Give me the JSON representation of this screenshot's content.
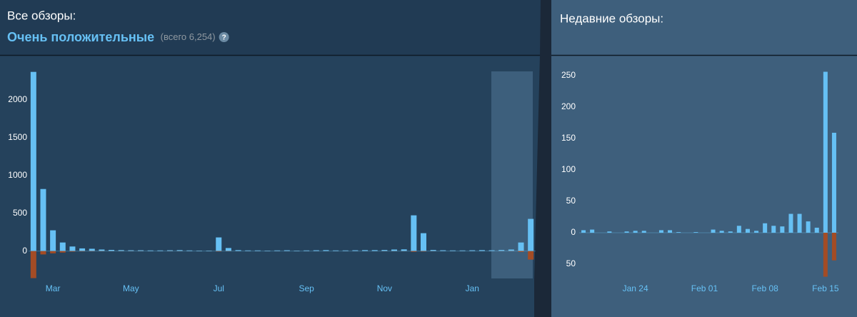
{
  "chart_data": [
    {
      "type": "bar",
      "title": "Все обзоры:",
      "summary": "Очень положительные",
      "total_label": "(всего 6,254)",
      "help_icon": "?",
      "categories": [
        null,
        null,
        "Mar",
        null,
        null,
        null,
        null,
        null,
        null,
        null,
        "May",
        null,
        null,
        null,
        null,
        null,
        null,
        null,
        null,
        "Jul",
        null,
        null,
        null,
        null,
        null,
        null,
        null,
        null,
        "Sep",
        null,
        null,
        null,
        null,
        null,
        null,
        null,
        "Nov",
        null,
        null,
        null,
        null,
        null,
        null,
        null,
        null,
        "Jan",
        null,
        null,
        null,
        null,
        null,
        null
      ],
      "series": [
        {
          "color": "#66c0f4",
          "values": [
            2368,
            820,
            274,
            113,
            60,
            35,
            30,
            20,
            15,
            12,
            10,
            10,
            8,
            8,
            10,
            12,
            8,
            6,
            6,
            180,
            40,
            12,
            8,
            8,
            6,
            8,
            10,
            6,
            8,
            10,
            12,
            8,
            8,
            10,
            12,
            12,
            14,
            20,
            22,
            472,
            236,
            14,
            10,
            8,
            8,
            10,
            12,
            10,
            14,
            20,
            113,
            425
          ]
        },
        {
          "color": "#a34c25",
          "values": [
            -358,
            -45,
            -30,
            -20,
            -8,
            -5,
            -4,
            -3,
            -2,
            -2,
            -2,
            -2,
            -1,
            -1,
            -2,
            -2,
            -1,
            -1,
            -1,
            -6,
            -3,
            -1,
            -1,
            -1,
            -1,
            -1,
            -1,
            -1,
            -1,
            -1,
            -1,
            -1,
            -1,
            -1,
            -1,
            -1,
            -2,
            -2,
            -2,
            -10,
            -6,
            -2,
            -1,
            -1,
            -1,
            -1,
            -1,
            -1,
            -2,
            -3,
            -12,
            -113
          ]
        }
      ],
      "ylim": [
        -400,
        2450
      ],
      "yticks": [
        0,
        500,
        1000,
        1500,
        2000
      ]
    },
    {
      "type": "bar",
      "title": "Недавние обзоры:",
      "categories": [
        null,
        null,
        null,
        null,
        null,
        null,
        "Jan 24",
        null,
        null,
        null,
        null,
        null,
        null,
        null,
        "Feb 01",
        null,
        null,
        null,
        null,
        null,
        null,
        "Feb 08",
        null,
        null,
        null,
        null,
        null,
        null,
        "Feb 15",
        null
      ],
      "series": [
        {
          "color": "#66c0f4",
          "values": [
            4,
            5,
            0,
            2,
            0,
            2,
            3,
            3,
            0,
            4,
            4,
            1,
            0,
            1,
            0,
            5,
            3,
            2,
            11,
            6,
            3,
            15,
            11,
            10,
            30,
            30,
            18,
            8,
            256,
            159
          ]
        },
        {
          "color": "#a34c25",
          "values": [
            0,
            0,
            0,
            0,
            0,
            0,
            0,
            0,
            0,
            0,
            0,
            0,
            0,
            0,
            0,
            0,
            0,
            0,
            0,
            0,
            0,
            0,
            0,
            0,
            0,
            0,
            0,
            0,
            -70,
            -44
          ]
        }
      ],
      "ylim": [
        -75,
        260
      ],
      "yticks": [
        250,
        200,
        150,
        100,
        50,
        0,
        {
          "value": -50,
          "label": "50"
        }
      ]
    }
  ]
}
